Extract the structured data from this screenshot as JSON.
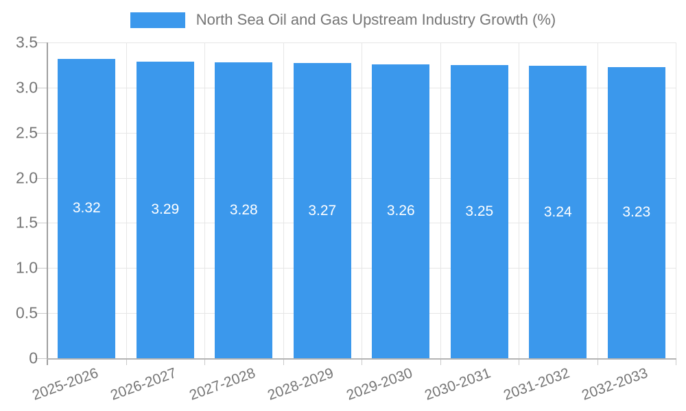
{
  "chart_data": {
    "type": "bar",
    "title": "North Sea Oil and Gas Upstream Industry Growth (%)",
    "legend_position": "top",
    "categories": [
      "2025-2026",
      "2026-2027",
      "2027-2028",
      "2028-2029",
      "2029-2030",
      "2030-2031",
      "2031-2032",
      "2032-2033"
    ],
    "values": [
      3.32,
      3.29,
      3.28,
      3.27,
      3.26,
      3.25,
      3.24,
      3.23
    ],
    "bar_labels": [
      "3.32",
      "3.29",
      "3.28",
      "3.27",
      "3.26",
      "3.25",
      "3.24",
      "3.23"
    ],
    "xlabel": "",
    "ylabel": "",
    "ylim": [
      0,
      3.5
    ],
    "yticks": [
      0,
      0.5,
      1,
      1.5,
      2,
      2.5,
      3,
      3.5
    ],
    "ytick_labels": [
      "0",
      "0.5",
      "1.0",
      "1.5",
      "2.0",
      "2.5",
      "3.0",
      "3.5"
    ],
    "grid": true,
    "colors": {
      "bar": "#3b98ec",
      "bar_value_text": "#ffffff",
      "axis_text": "#757575",
      "legend_text": "#757575",
      "gridline": "#e6e6e6",
      "axis_line": "#9e9e9e",
      "background": "#ffffff"
    }
  }
}
